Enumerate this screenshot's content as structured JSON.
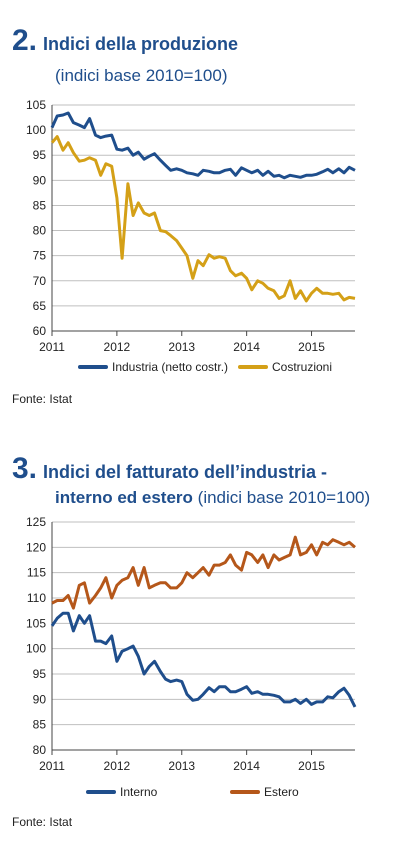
{
  "charts": [
    {
      "number": "2.",
      "title": "Indici della produzione",
      "subtitle": "(indici base 2010=100)",
      "source": "Fonte: Istat"
    },
    {
      "number": "3.",
      "title": "Indici del fatturato dell’industria -",
      "subtitle_bold": "interno ed estero",
      "subtitle_light": "(indici base 2010=100)",
      "source": "Fonte: Istat"
    }
  ],
  "chart_data": [
    {
      "type": "line",
      "title": "Indici della produzione",
      "subtitle": "(indici base 2010=100)",
      "ylim": [
        60,
        105
      ],
      "yticks": [
        60,
        65,
        70,
        75,
        80,
        85,
        90,
        95,
        100,
        105
      ],
      "xlim": [
        2011,
        2015.67
      ],
      "xticks": [
        "2011",
        "2012",
        "2013",
        "2014",
        "2015"
      ],
      "grid": "horizontal",
      "legend": "bottom",
      "series": [
        {
          "name": "Industria (netto costr.)",
          "color": "#1f4e8c",
          "x": [
            2011.0,
            2011.08,
            2011.17,
            2011.25,
            2011.33,
            2011.42,
            2011.5,
            2011.58,
            2011.67,
            2011.75,
            2011.83,
            2011.92,
            2012.0,
            2012.08,
            2012.17,
            2012.25,
            2012.33,
            2012.42,
            2012.5,
            2012.58,
            2012.67,
            2012.75,
            2012.83,
            2012.92,
            2013.0,
            2013.08,
            2013.17,
            2013.25,
            2013.33,
            2013.42,
            2013.5,
            2013.58,
            2013.67,
            2013.75,
            2013.83,
            2013.92,
            2014.0,
            2014.08,
            2014.17,
            2014.25,
            2014.33,
            2014.42,
            2014.5,
            2014.58,
            2014.67,
            2014.75,
            2014.83,
            2014.92,
            2015.0,
            2015.08,
            2015.17,
            2015.25,
            2015.33,
            2015.42,
            2015.5,
            2015.58,
            2015.67
          ],
          "values": [
            100.5,
            102.8,
            103.0,
            103.4,
            101.5,
            101.0,
            100.5,
            102.3,
            99.0,
            98.5,
            98.8,
            99.0,
            96.2,
            96.0,
            96.4,
            95.0,
            95.6,
            94.2,
            94.8,
            95.3,
            94.0,
            93.0,
            92.0,
            92.3,
            92.0,
            91.5,
            91.3,
            91.0,
            92.0,
            91.8,
            91.5,
            91.5,
            92.0,
            92.2,
            91.0,
            92.5,
            92.0,
            91.5,
            92.0,
            91.0,
            91.8,
            90.8,
            91.0,
            90.5,
            91.0,
            90.8,
            90.6,
            91.0,
            91.0,
            91.2,
            91.7,
            92.2,
            91.5,
            92.3,
            91.5,
            92.6,
            92.0
          ]
        },
        {
          "name": "Costruzioni",
          "color": "#d4a017",
          "x": [
            2011.0,
            2011.08,
            2011.17,
            2011.25,
            2011.33,
            2011.42,
            2011.5,
            2011.58,
            2011.67,
            2011.75,
            2011.83,
            2011.92,
            2012.0,
            2012.08,
            2012.17,
            2012.25,
            2012.33,
            2012.42,
            2012.5,
            2012.58,
            2012.67,
            2012.75,
            2012.83,
            2012.92,
            2013.0,
            2013.08,
            2013.17,
            2013.25,
            2013.33,
            2013.42,
            2013.5,
            2013.58,
            2013.67,
            2013.75,
            2013.83,
            2013.92,
            2014.0,
            2014.08,
            2014.17,
            2014.25,
            2014.33,
            2014.42,
            2014.5,
            2014.58,
            2014.67,
            2014.75,
            2014.83,
            2014.92,
            2015.0,
            2015.08,
            2015.17,
            2015.25,
            2015.33,
            2015.42,
            2015.5,
            2015.58,
            2015.67
          ],
          "values": [
            97.5,
            98.7,
            96.0,
            97.5,
            95.5,
            93.8,
            94.0,
            94.5,
            94.0,
            91.0,
            93.3,
            92.8,
            86.5,
            74.5,
            89.3,
            83.0,
            85.5,
            83.5,
            83.0,
            83.5,
            80.0,
            79.8,
            79.0,
            78.0,
            76.5,
            75.0,
            70.5,
            74.0,
            73.0,
            75.2,
            74.5,
            74.8,
            74.5,
            72.0,
            71.0,
            71.5,
            70.5,
            68.2,
            70.0,
            69.5,
            68.5,
            68.0,
            66.5,
            67.0,
            70.0,
            66.5,
            68.0,
            66.0,
            67.5,
            68.5,
            67.5,
            67.5,
            67.3,
            67.5,
            66.2,
            66.7,
            66.5
          ]
        }
      ]
    },
    {
      "type": "line",
      "title": "Indici del fatturato dell’industria - interno ed estero",
      "subtitle": "(indici base 2010=100)",
      "ylim": [
        80,
        125
      ],
      "yticks": [
        80,
        85,
        90,
        95,
        100,
        105,
        110,
        115,
        120,
        125
      ],
      "xlim": [
        2011,
        2015.67
      ],
      "xticks": [
        "2011",
        "2012",
        "2013",
        "2014",
        "2015"
      ],
      "grid": "horizontal",
      "legend": "bottom",
      "series": [
        {
          "name": "Interno",
          "color": "#1f4e8c",
          "x": [
            2011.0,
            2011.08,
            2011.17,
            2011.25,
            2011.33,
            2011.42,
            2011.5,
            2011.58,
            2011.67,
            2011.75,
            2011.83,
            2011.92,
            2012.0,
            2012.08,
            2012.17,
            2012.25,
            2012.33,
            2012.42,
            2012.5,
            2012.58,
            2012.67,
            2012.75,
            2012.83,
            2012.92,
            2013.0,
            2013.08,
            2013.17,
            2013.25,
            2013.33,
            2013.42,
            2013.5,
            2013.58,
            2013.67,
            2013.75,
            2013.83,
            2013.92,
            2014.0,
            2014.08,
            2014.17,
            2014.25,
            2014.33,
            2014.42,
            2014.5,
            2014.58,
            2014.67,
            2014.75,
            2014.83,
            2014.92,
            2015.0,
            2015.08,
            2015.17,
            2015.25,
            2015.33,
            2015.42,
            2015.5,
            2015.58,
            2015.67
          ],
          "values": [
            104.5,
            106.0,
            107.0,
            107.0,
            103.5,
            106.5,
            105.0,
            106.5,
            101.5,
            101.5,
            101.0,
            102.5,
            97.5,
            99.5,
            100.0,
            100.5,
            98.5,
            95.0,
            96.5,
            97.5,
            95.5,
            94.0,
            93.5,
            93.8,
            93.5,
            91.0,
            89.8,
            90.0,
            91.0,
            92.3,
            91.5,
            92.5,
            92.5,
            91.5,
            91.5,
            92.0,
            92.5,
            91.2,
            91.5,
            91.0,
            91.0,
            90.8,
            90.5,
            89.5,
            89.5,
            90.0,
            89.2,
            90.0,
            89.0,
            89.5,
            89.5,
            90.5,
            90.3,
            91.5,
            92.2,
            90.8,
            88.5
          ]
        },
        {
          "name": "Estero",
          "color": "#b5571a",
          "x": [
            2011.0,
            2011.08,
            2011.17,
            2011.25,
            2011.33,
            2011.42,
            2011.5,
            2011.58,
            2011.67,
            2011.75,
            2011.83,
            2011.92,
            2012.0,
            2012.08,
            2012.17,
            2012.25,
            2012.33,
            2012.42,
            2012.5,
            2012.58,
            2012.67,
            2012.75,
            2012.83,
            2012.92,
            2013.0,
            2013.08,
            2013.17,
            2013.25,
            2013.33,
            2013.42,
            2013.5,
            2013.58,
            2013.67,
            2013.75,
            2013.83,
            2013.92,
            2014.0,
            2014.08,
            2014.17,
            2014.25,
            2014.33,
            2014.42,
            2014.5,
            2014.58,
            2014.67,
            2014.75,
            2014.83,
            2014.92,
            2015.0,
            2015.08,
            2015.17,
            2015.25,
            2015.33,
            2015.42,
            2015.5,
            2015.58,
            2015.67
          ],
          "values": [
            109.0,
            109.5,
            109.5,
            110.5,
            108.0,
            112.5,
            113.0,
            109.0,
            110.5,
            112.0,
            114.0,
            110.0,
            112.5,
            113.5,
            114.0,
            116.0,
            112.5,
            116.0,
            112.0,
            112.5,
            113.0,
            113.0,
            112.0,
            112.0,
            113.0,
            115.0,
            114.0,
            115.0,
            116.0,
            114.5,
            116.5,
            116.5,
            117.0,
            118.5,
            116.5,
            115.5,
            119.0,
            118.5,
            117.0,
            118.5,
            116.0,
            118.5,
            117.5,
            118.0,
            118.5,
            122.0,
            118.5,
            119.0,
            120.5,
            118.5,
            121.0,
            120.5,
            121.5,
            121.0,
            120.5,
            121.0,
            120.0
          ]
        }
      ]
    }
  ]
}
